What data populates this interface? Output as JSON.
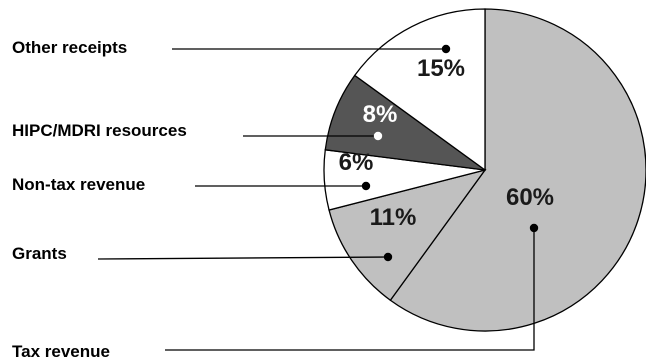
{
  "chart_data": {
    "type": "pie",
    "title": "",
    "slices": [
      {
        "label": "Tax revenue",
        "value": 60,
        "value_label": "60%",
        "fill": "#c0c0c0",
        "text_color": "#1a1a1a"
      },
      {
        "label": "Grants",
        "value": 11,
        "value_label": "11%",
        "fill": "#c0c0c0",
        "text_color": "#1a1a1a"
      },
      {
        "label": "Non-tax revenue",
        "value": 6,
        "value_label": "6%",
        "fill": "#ffffff",
        "text_color": "#1a1a1a"
      },
      {
        "label": "HIPC/MDRI resources",
        "value": 8,
        "value_label": "8%",
        "fill": "#555555",
        "text_color": "#ffffff"
      },
      {
        "label": "Other receipts",
        "value": 15,
        "value_label": "15%",
        "fill": "#ffffff",
        "text_color": "#1a1a1a"
      }
    ],
    "start": "12 o'clock",
    "direction": "clockwise",
    "legend": "none (external leader-line labels on left)"
  }
}
